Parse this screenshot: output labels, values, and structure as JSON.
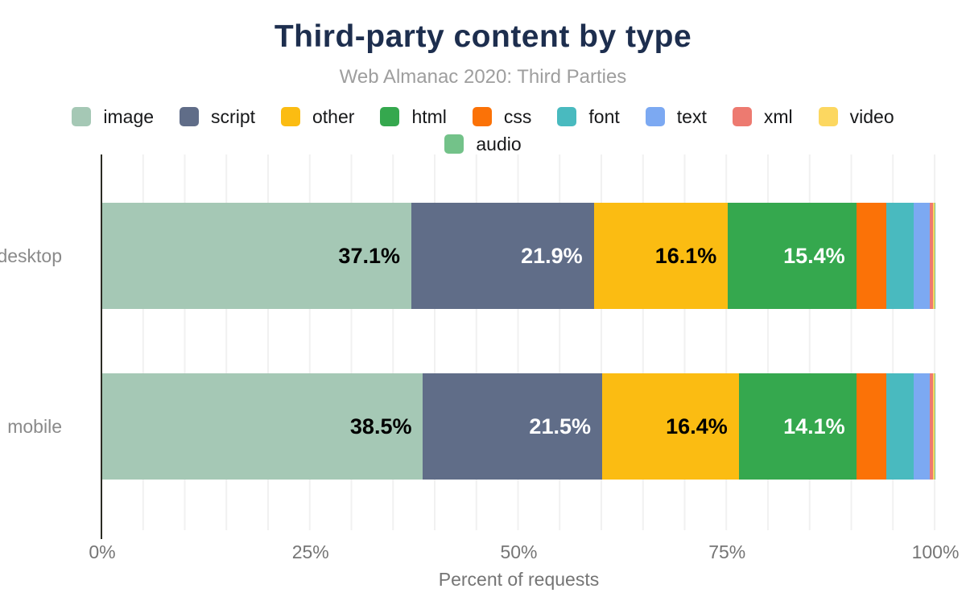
{
  "header": {
    "title": "Third-party content by type",
    "subtitle": "Web Almanac 2020: Third Parties"
  },
  "chart_data": {
    "type": "bar",
    "variant": "horizontal-stacked-100pct",
    "title": "Third-party content by type",
    "subtitle": "Web Almanac 2020: Third Parties",
    "categories": [
      "desktop",
      "mobile"
    ],
    "series": [
      {
        "name": "image",
        "color": "#a5c8b5",
        "label_color": "#000000",
        "values": [
          37.1,
          38.5
        ],
        "labels": [
          "37.1%",
          "38.5%"
        ],
        "show_labels": true
      },
      {
        "name": "script",
        "color": "#606d88",
        "label_color": "#ffffff",
        "values": [
          21.9,
          21.5
        ],
        "labels": [
          "21.9%",
          "21.5%"
        ],
        "show_labels": true
      },
      {
        "name": "other",
        "color": "#fbbc12",
        "label_color": "#000000",
        "values": [
          16.1,
          16.4
        ],
        "labels": [
          "16.1%",
          "16.4%"
        ],
        "show_labels": true
      },
      {
        "name": "html",
        "color": "#35a84e",
        "label_color": "#ffffff",
        "values": [
          15.4,
          14.1
        ],
        "labels": [
          "15.4%",
          "14.1%"
        ],
        "show_labels": true
      },
      {
        "name": "css",
        "color": "#fb7207",
        "values": [
          3.6,
          3.6
        ],
        "show_labels": false
      },
      {
        "name": "font",
        "color": "#49babf",
        "values": [
          3.3,
          3.3
        ],
        "show_labels": false
      },
      {
        "name": "text",
        "color": "#7ca9f2",
        "values": [
          1.9,
          1.9
        ],
        "show_labels": false
      },
      {
        "name": "xml",
        "color": "#ed7a70",
        "values": [
          0.4,
          0.4
        ],
        "show_labels": false
      },
      {
        "name": "video",
        "color": "#fcd760",
        "values": [
          0.2,
          0.2
        ],
        "show_labels": false
      },
      {
        "name": "audio",
        "color": "#73c289",
        "values": [
          0.1,
          0.1
        ],
        "show_labels": false
      }
    ],
    "xlabel": "Percent of requests",
    "xlim": [
      0,
      100
    ],
    "x_ticks": [
      {
        "value": 0,
        "label": "0%"
      },
      {
        "value": 25,
        "label": "25%"
      },
      {
        "value": 50,
        "label": "50%"
      },
      {
        "value": 75,
        "label": "75%"
      },
      {
        "value": 100,
        "label": "100%"
      }
    ],
    "grid": {
      "minor_step_pct": 5,
      "color": "#f1f1f1"
    },
    "legend_position": "top"
  },
  "colors": {
    "title": "#1d2e4e",
    "subtitle": "#9e9e9e",
    "axis_text": "#757575",
    "row_label": "#8a8a8a",
    "axis_line": "#2b2c24"
  }
}
